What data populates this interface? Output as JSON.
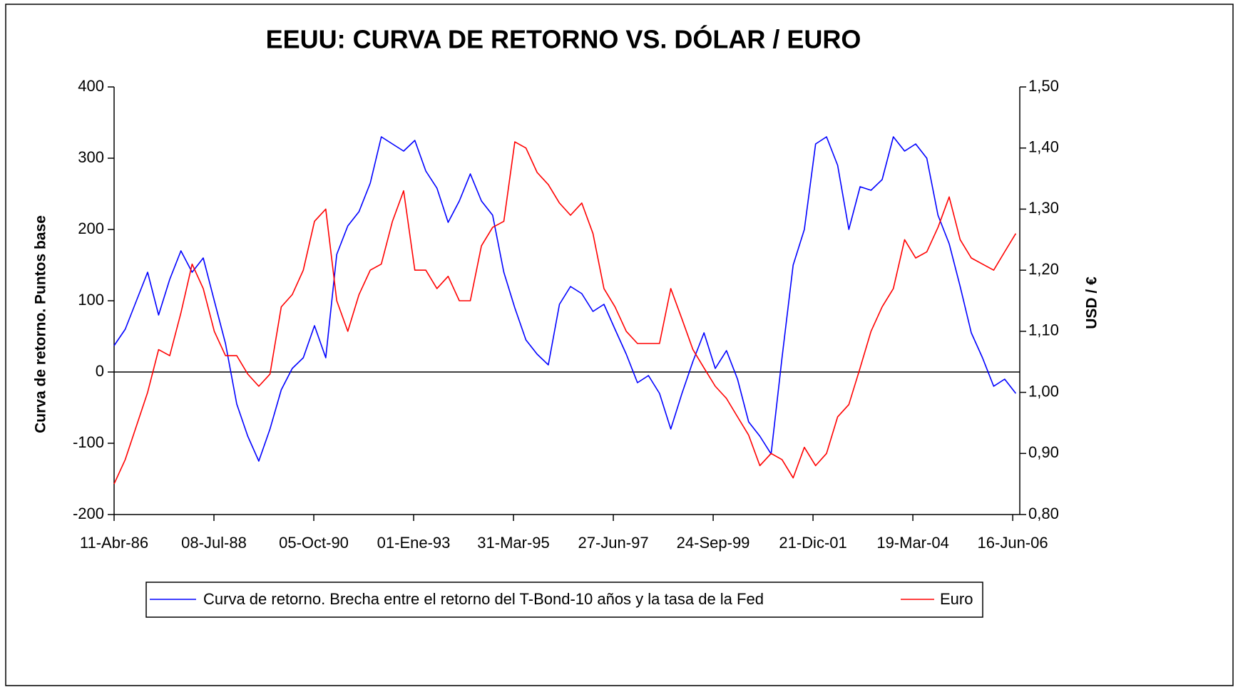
{
  "chart_data": {
    "type": "line",
    "title": "EEUU: CURVA DE RETORNO VS. DÓLAR / EURO",
    "ylabel": "Curva de retorno. Puntos base",
    "y2label": "USD / €",
    "xlim": [
      "1986-04-11",
      "2006-08-13"
    ],
    "xticks": [
      {
        "value": "1986-04-11",
        "label": "11-Abr-86"
      },
      {
        "value": "1988-07-08",
        "label": "08-Jul-88"
      },
      {
        "value": "1990-10-05",
        "label": "05-Oct-90"
      },
      {
        "value": "1993-01-01",
        "label": "01-Ene-93"
      },
      {
        "value": "1995-03-31",
        "label": "31-Mar-95"
      },
      {
        "value": "1997-06-27",
        "label": "27-Jun-97"
      },
      {
        "value": "1999-09-24",
        "label": "24-Sep-99"
      },
      {
        "value": "2001-12-21",
        "label": "21-Dic-01"
      },
      {
        "value": "2004-03-19",
        "label": "19-Mar-04"
      },
      {
        "value": "2006-06-16",
        "label": "16-Jun-06"
      }
    ],
    "ylim": [
      -200,
      400
    ],
    "yticks": [
      -200,
      -100,
      0,
      100,
      200,
      300,
      400
    ],
    "y2lim": [
      0.8,
      1.5
    ],
    "y2ticks": [
      {
        "value": 0.8,
        "label": "0,80"
      },
      {
        "value": 0.9,
        "label": "0,90"
      },
      {
        "value": 1.0,
        "label": "1,00"
      },
      {
        "value": 1.1,
        "label": "1,10"
      },
      {
        "value": 1.2,
        "label": "1,20"
      },
      {
        "value": 1.3,
        "label": "1,30"
      },
      {
        "value": 1.4,
        "label": "1,40"
      },
      {
        "value": 1.5,
        "label": "1,50"
      }
    ],
    "zero_line": true,
    "legend": "bottom",
    "x": [
      "1986-04-11",
      "1986-07-11",
      "1986-10-11",
      "1987-01-11",
      "1987-04-11",
      "1987-07-11",
      "1987-10-11",
      "1988-01-11",
      "1988-04-11",
      "1988-07-11",
      "1988-10-11",
      "1989-01-11",
      "1989-04-11",
      "1989-07-11",
      "1989-10-11",
      "1990-01-11",
      "1990-04-11",
      "1990-07-11",
      "1990-10-11",
      "1991-01-11",
      "1991-04-11",
      "1991-07-11",
      "1991-10-11",
      "1992-01-11",
      "1992-04-11",
      "1992-07-11",
      "1992-10-11",
      "1993-01-11",
      "1993-04-11",
      "1993-07-11",
      "1993-10-11",
      "1994-01-11",
      "1994-04-11",
      "1994-07-11",
      "1994-10-11",
      "1995-01-11",
      "1995-04-11",
      "1995-07-11",
      "1995-10-11",
      "1996-01-11",
      "1996-04-11",
      "1996-07-11",
      "1996-10-11",
      "1997-01-11",
      "1997-04-11",
      "1997-07-11",
      "1997-10-11",
      "1998-01-11",
      "1998-04-11",
      "1998-07-11",
      "1998-10-11",
      "1999-01-11",
      "1999-04-11",
      "1999-07-11",
      "1999-10-11",
      "2000-01-11",
      "2000-04-11",
      "2000-07-11",
      "2000-10-11",
      "2001-01-11",
      "2001-04-11",
      "2001-07-11",
      "2001-10-11",
      "2002-01-11",
      "2002-04-11",
      "2002-07-11",
      "2002-10-11",
      "2003-01-11",
      "2003-04-11",
      "2003-07-11",
      "2003-10-11",
      "2004-01-11",
      "2004-04-11",
      "2004-07-11",
      "2004-10-11",
      "2005-01-11",
      "2005-04-11",
      "2005-07-11",
      "2005-10-11",
      "2006-01-11",
      "2006-04-11",
      "2006-07-11"
    ],
    "series": [
      {
        "name": "Curva de retorno. Brecha entre el retorno del T-Bond-10 años y la tasa de la Fed",
        "color": "#0000ff",
        "values": [
          37,
          60,
          100,
          140,
          80,
          130,
          170,
          140,
          160,
          100,
          40,
          -45,
          -90,
          -125,
          -80,
          -25,
          5,
          20,
          65,
          20,
          165,
          205,
          225,
          265,
          330,
          320,
          310,
          325,
          282,
          258,
          210,
          240,
          278,
          240,
          220,
          140,
          90,
          45,
          25,
          10,
          95,
          120,
          110,
          85,
          95,
          60,
          25,
          -15,
          -5,
          -30,
          -80,
          -30,
          15,
          55,
          5,
          30,
          -10,
          -70,
          -90,
          -115,
          20,
          150,
          200,
          320,
          330,
          290,
          200,
          260,
          255,
          270,
          330,
          310,
          320,
          300,
          220,
          180,
          120,
          55,
          20,
          -20,
          -10,
          -30
        ]
      },
      {
        "name": "Euro",
        "color": "#ff0000",
        "axis": "y2",
        "values": [
          0.85,
          0.89,
          0.945,
          1.0,
          1.07,
          1.06,
          1.13,
          1.21,
          1.17,
          1.1,
          1.06,
          1.06,
          1.03,
          1.01,
          1.03,
          1.14,
          1.16,
          1.2,
          1.28,
          1.3,
          1.15,
          1.1,
          1.16,
          1.2,
          1.21,
          1.28,
          1.33,
          1.2,
          1.2,
          1.17,
          1.19,
          1.15,
          1.15,
          1.24,
          1.27,
          1.28,
          1.41,
          1.4,
          1.36,
          1.34,
          1.31,
          1.29,
          1.31,
          1.26,
          1.17,
          1.14,
          1.1,
          1.08,
          1.08,
          1.08,
          1.17,
          1.12,
          1.07,
          1.04,
          1.01,
          0.99,
          0.96,
          0.93,
          0.88,
          0.9,
          0.89,
          0.86,
          0.91,
          0.88,
          0.9,
          0.96,
          0.98,
          1.04,
          1.1,
          1.14,
          1.17,
          1.25,
          1.22,
          1.23,
          1.27,
          1.32,
          1.25,
          1.22,
          1.21,
          1.2,
          1.23,
          1.26
        ]
      }
    ]
  }
}
